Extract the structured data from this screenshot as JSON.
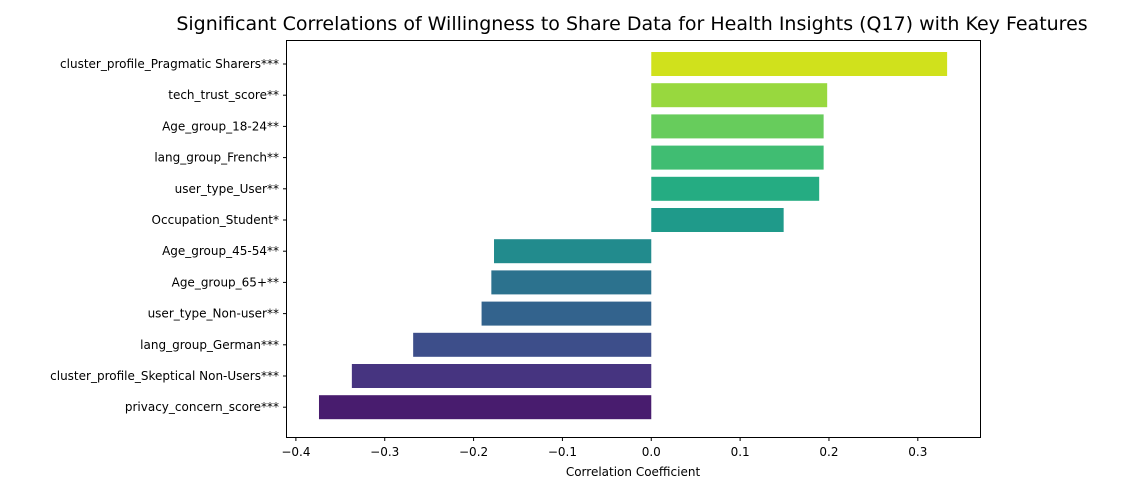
{
  "chart_data": {
    "type": "bar",
    "orientation": "horizontal",
    "title": "Significant Correlations of Willingness to Share Data for Health Insights (Q17) with Key Features",
    "xlabel": "Correlation Coefficient",
    "ylabel": "",
    "xlim": [
      -0.41,
      0.37
    ],
    "xticks": [
      -0.4,
      -0.3,
      -0.2,
      -0.1,
      0.0,
      0.1,
      0.2,
      0.3
    ],
    "xtick_labels": [
      "−0.4",
      "−0.3",
      "−0.2",
      "−0.1",
      "0.0",
      "0.1",
      "0.2",
      "0.3"
    ],
    "grid": false,
    "colormap": "viridis",
    "categories": [
      "cluster_profile_Pragmatic Sharers***",
      "tech_trust_score**",
      "Age_group_18-24**",
      "lang_group_French**",
      "user_type_User**",
      "Occupation_Student*",
      "Age_group_45-54**",
      "Age_group_65+**",
      "user_type_Non-user**",
      "lang_group_German***",
      "cluster_profile_Skeptical Non-Users***",
      "privacy_concern_score***"
    ],
    "values": [
      0.333,
      0.198,
      0.194,
      0.194,
      0.189,
      0.149,
      -0.177,
      -0.18,
      -0.191,
      -0.268,
      -0.337,
      -0.374
    ],
    "colors": [
      "#d0e11c",
      "#98d83e",
      "#67cc5c",
      "#40bd72",
      "#25ac82",
      "#1f9a8a",
      "#228b8d",
      "#2c728e",
      "#33638d",
      "#3d4e8a",
      "#463480",
      "#481c6e"
    ]
  }
}
